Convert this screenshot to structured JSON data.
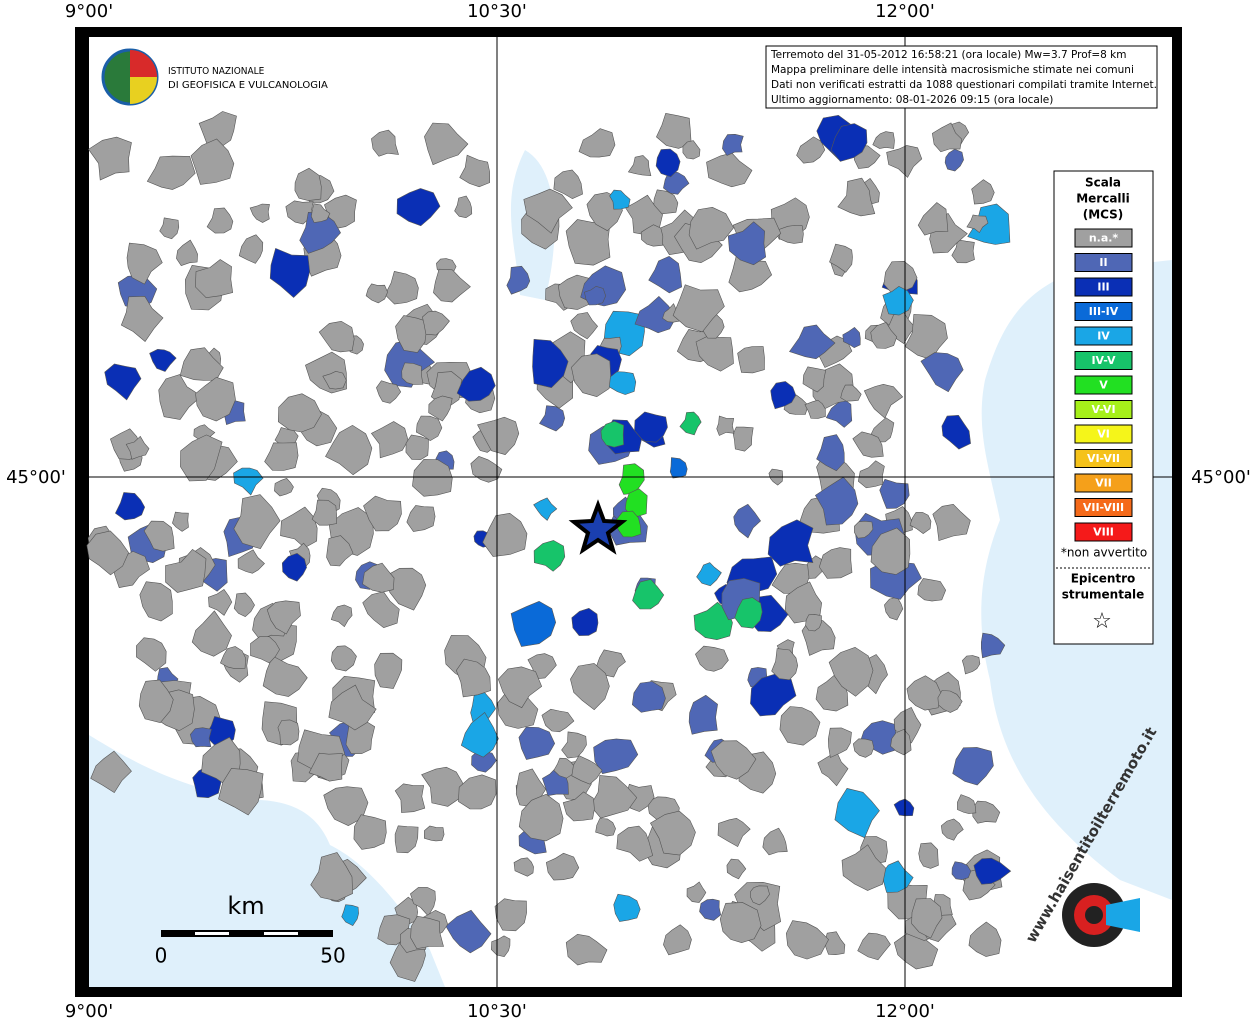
{
  "frame": {
    "lon_labels": [
      "9°00'",
      "10°30'",
      "12°00'"
    ],
    "lat_labels": [
      "45°00'"
    ]
  },
  "info": {
    "lines": [
      "Terremoto del 31-05-2012 16:58:21 (ora locale) Mw=3.7 Prof=8 km",
      "Mappa preliminare delle intensità macrosismiche stimate nei comuni",
      "Dati non verificati estratti da 1088 questionari compilati tramite Internet.",
      "Ultimo aggiornamento: 08-01-2026 09:15 (ora locale)"
    ]
  },
  "logo": {
    "lines": [
      "ISTITUTO NAZIONALE",
      "DI GEOFISICA E VULCANOLOGIA"
    ]
  },
  "legend": {
    "title": [
      "Scala",
      "Mercalli",
      "(MCS)"
    ],
    "items": [
      {
        "label": "n.a.*",
        "color": "#a0a0a0"
      },
      {
        "label": "II",
        "color": "#4f67b5"
      },
      {
        "label": "III",
        "color": "#0a2fb5"
      },
      {
        "label": "III-IV",
        "color": "#0a6ad8"
      },
      {
        "label": "IV",
        "color": "#1aa6e6"
      },
      {
        "label": "IV-V",
        "color": "#17c46a"
      },
      {
        "label": "V",
        "color": "#22e022"
      },
      {
        "label": "V-VI",
        "color": "#a6f01a"
      },
      {
        "label": "VI",
        "color": "#f5f51a"
      },
      {
        "label": "VI-VII",
        "color": "#f5c21a"
      },
      {
        "label": "VII",
        "color": "#f5a01a"
      },
      {
        "label": "VII-VIII",
        "color": "#f56a1a"
      },
      {
        "label": "VIII",
        "color": "#f51a1a"
      }
    ],
    "note": "*non avvertito",
    "epicenter": [
      "Epicentro",
      "strumentale"
    ],
    "symbol": "☆"
  },
  "scale": {
    "unit": "km",
    "ticks": [
      0,
      50
    ]
  },
  "site": "www.haisentitoilterremoto.it"
}
